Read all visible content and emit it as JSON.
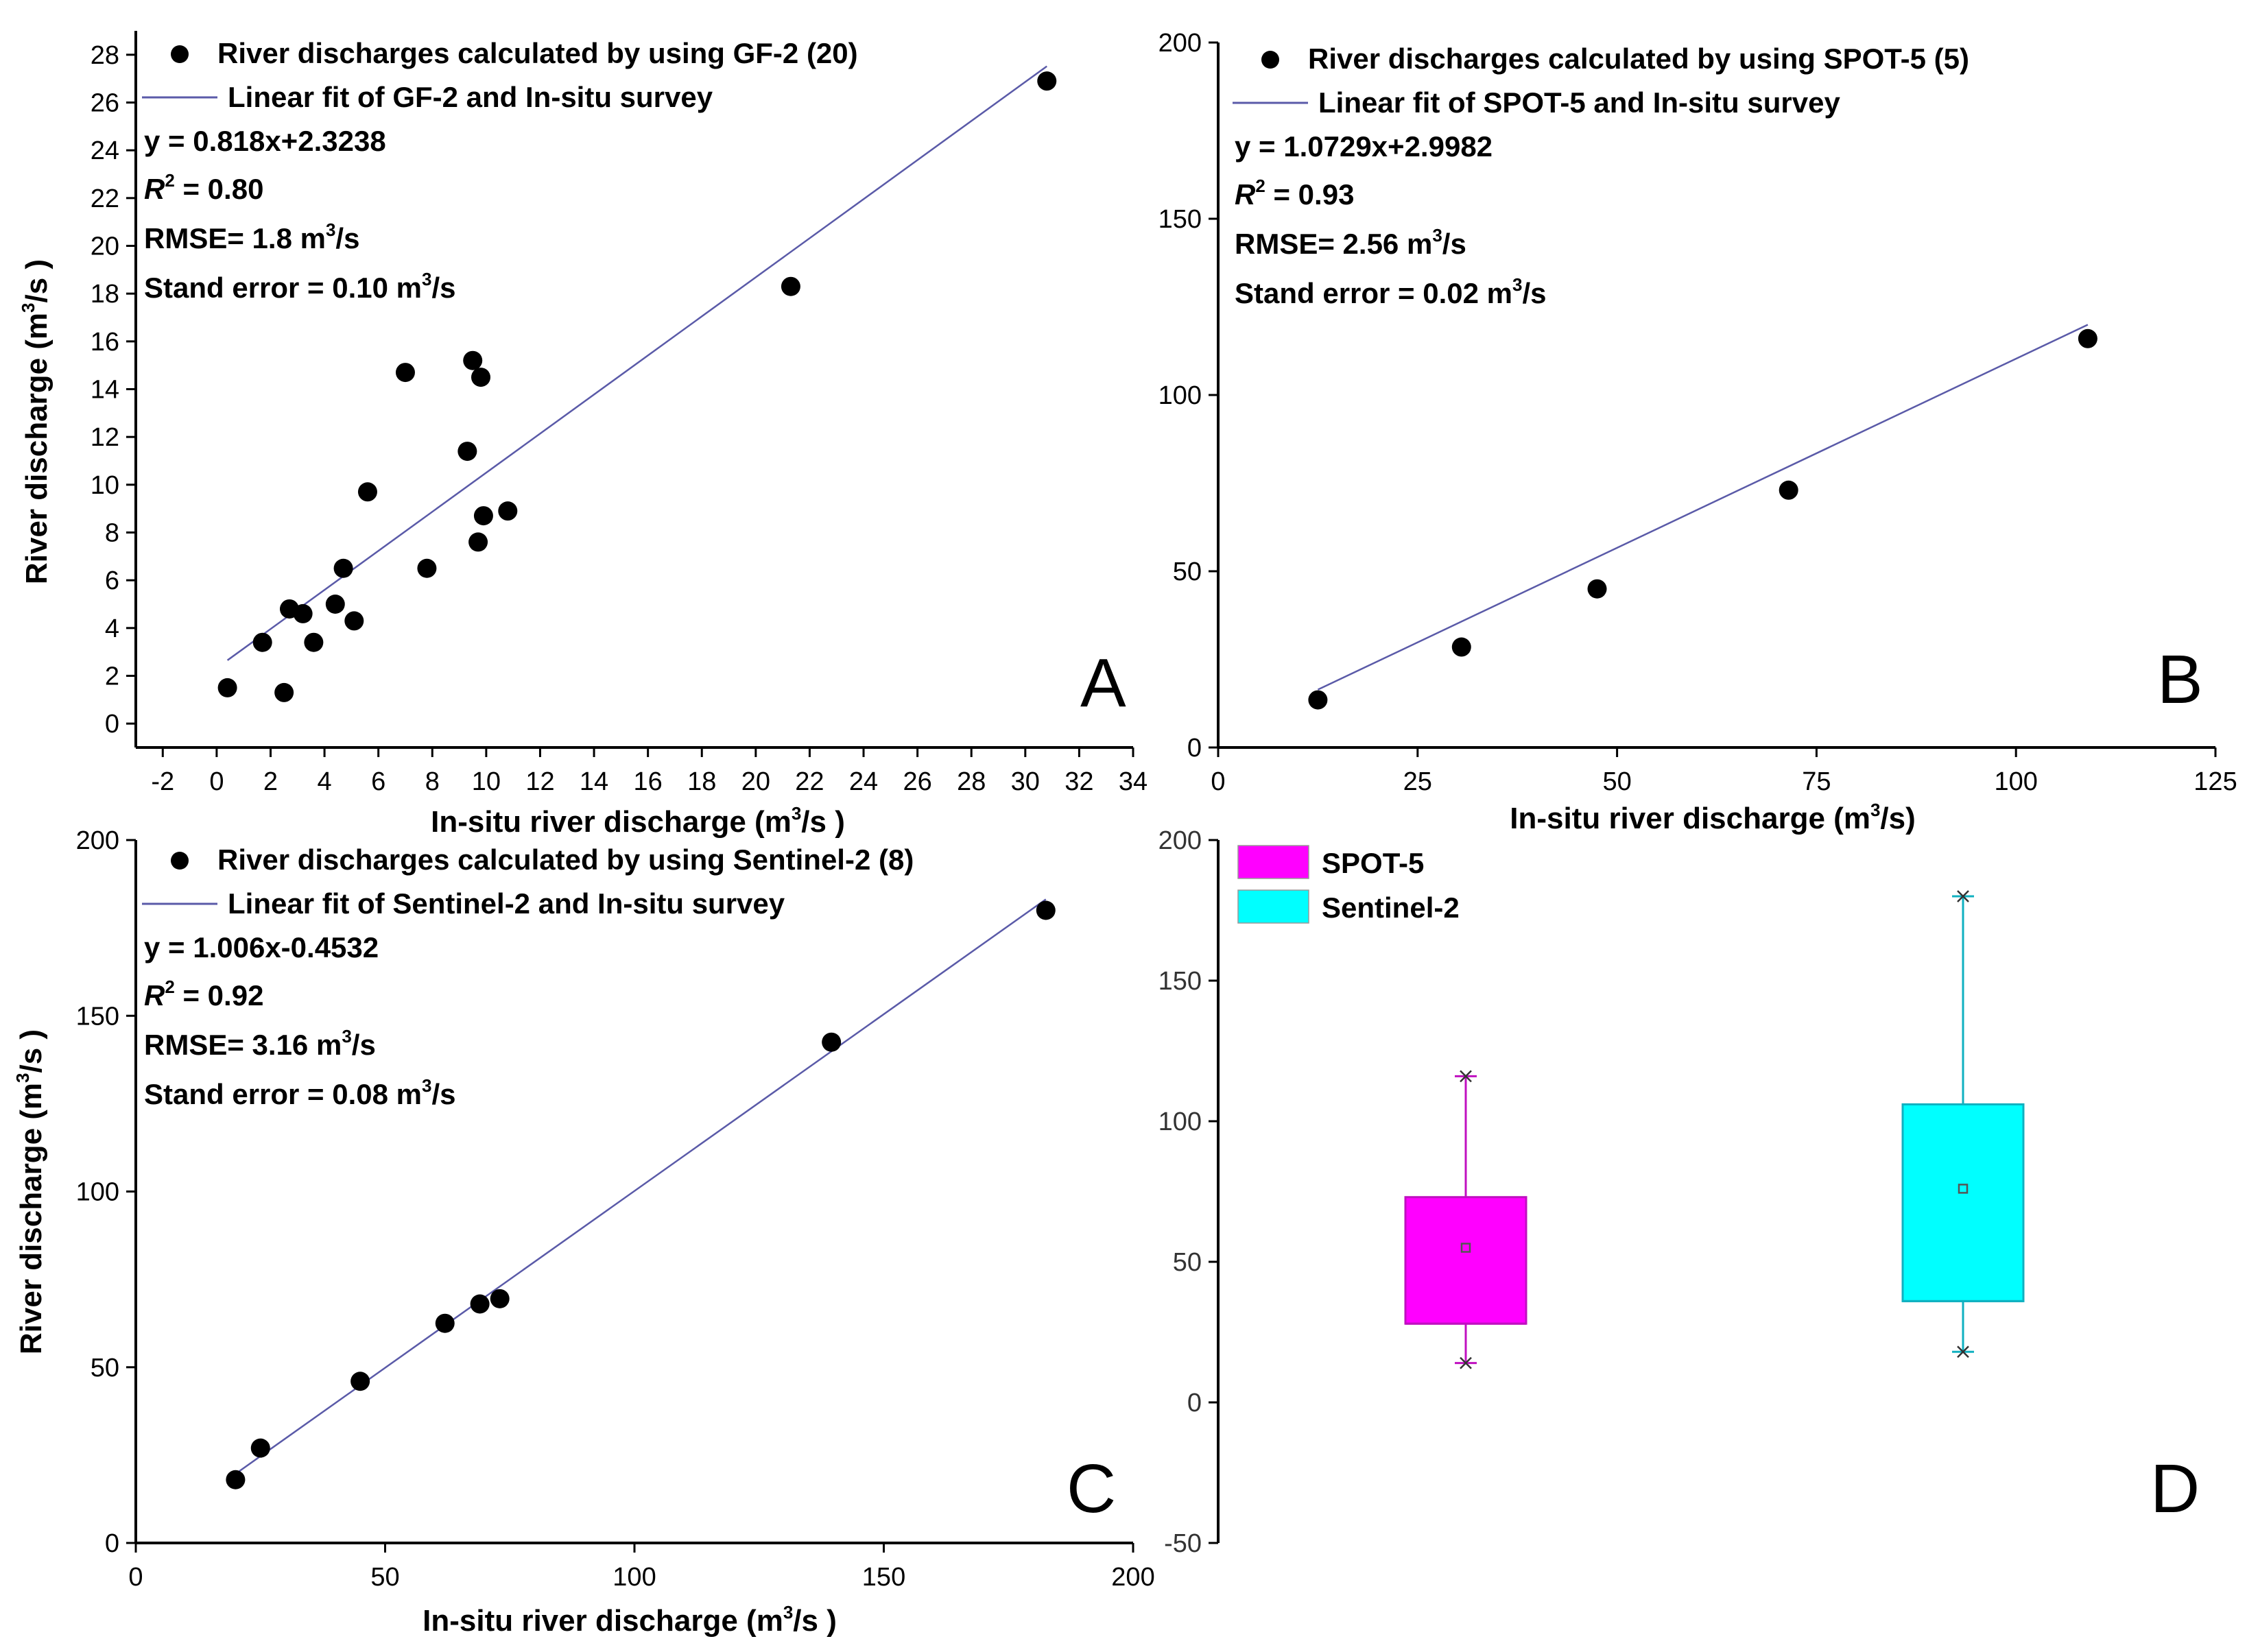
{
  "chart_data": [
    {
      "panel": "A",
      "type": "scatter",
      "xlabel": "In-situ river discharge (m3/s )",
      "ylabel": "River discharge (m3/s )",
      "xlim": [
        -3,
        34
      ],
      "ylim": [
        -1,
        29
      ],
      "xticks": [
        -2,
        0,
        2,
        4,
        6,
        8,
        10,
        12,
        14,
        16,
        18,
        20,
        22,
        24,
        26,
        28,
        30,
        32,
        34
      ],
      "yticks": [
        0,
        2,
        4,
        6,
        8,
        10,
        12,
        14,
        16,
        18,
        20,
        22,
        24,
        26,
        28
      ],
      "series": [
        {
          "name": "River discharges calculated by using GF-2 (20)",
          "points": [
            [
              0.4,
              1.5
            ],
            [
              1.7,
              3.4
            ],
            [
              2.5,
              1.3
            ],
            [
              2.7,
              4.8
            ],
            [
              3.2,
              4.6
            ],
            [
              3.6,
              3.4
            ],
            [
              4.4,
              5.0
            ],
            [
              4.7,
              6.5
            ],
            [
              5.1,
              4.3
            ],
            [
              5.6,
              9.7
            ],
            [
              7.0,
              14.7
            ],
            [
              7.8,
              6.5
            ],
            [
              9.3,
              11.4
            ],
            [
              9.5,
              15.2
            ],
            [
              9.7,
              7.6
            ],
            [
              9.8,
              14.5
            ],
            [
              9.9,
              8.7
            ],
            [
              10.8,
              8.9
            ],
            [
              21.3,
              18.3
            ],
            [
              30.8,
              26.9
            ]
          ]
        }
      ],
      "fit": {
        "name": "Linear fit of GF-2 and In-situ survey",
        "slope": 0.818,
        "intercept": 2.3238,
        "x_range": [
          0.4,
          30.8
        ]
      },
      "stats": {
        "equation": "y = 0.818x+2.3238",
        "r2": "= 0.80",
        "rmse": "RMSE= 1.8 m",
        "stand_error": "Stand error = 0.10 m"
      },
      "panel_label": "A"
    },
    {
      "panel": "B",
      "type": "scatter",
      "xlabel": "In-situ river discharge (m3/s)",
      "ylabel": "",
      "xlim": [
        0,
        125
      ],
      "ylim": [
        0,
        200
      ],
      "xticks": [
        0,
        25,
        50,
        75,
        100,
        125
      ],
      "yticks": [
        0,
        50,
        100,
        150,
        200
      ],
      "series": [
        {
          "name": "River discharges calculated by using SPOT-5 (5)",
          "points": [
            [
              12.5,
              13.5
            ],
            [
              30.5,
              28.5
            ],
            [
              47.5,
              45.0
            ],
            [
              71.5,
              73.0
            ],
            [
              109.0,
              116.0
            ]
          ]
        }
      ],
      "fit": {
        "name": "Linear fit of SPOT-5 and In-situ survey",
        "slope": 1.0729,
        "intercept": 2.9982,
        "x_range": [
          12.5,
          109.0
        ]
      },
      "stats": {
        "equation": "y = 1.0729x+2.9982",
        "r2": "= 0.93",
        "rmse": "RMSE= 2.56 m",
        "stand_error": "Stand error = 0.02 m"
      },
      "panel_label": "B"
    },
    {
      "panel": "C",
      "type": "scatter",
      "xlabel": "In-situ river discharge (m3/s )",
      "ylabel": "River discharge (m3/s )",
      "xlim": [
        0,
        200
      ],
      "ylim": [
        0,
        200
      ],
      "xticks": [
        0,
        50,
        100,
        150,
        200
      ],
      "yticks": [
        0,
        50,
        100,
        150,
        200
      ],
      "series": [
        {
          "name": "River discharges calculated by using Sentinel-2 (8)",
          "points": [
            [
              20.0,
              18.0
            ],
            [
              25.0,
              27.0
            ],
            [
              45.0,
              46.0
            ],
            [
              62.0,
              62.5
            ],
            [
              69.0,
              68.0
            ],
            [
              73.0,
              69.5
            ],
            [
              139.5,
              142.5
            ],
            [
              182.5,
              180.0
            ]
          ]
        }
      ],
      "fit": {
        "name": "Linear fit of Sentinel-2 and In-situ survey",
        "slope": 1.006,
        "intercept": -0.4532,
        "x_range": [
          20.0,
          182.5
        ]
      },
      "stats": {
        "equation": "y = 1.006x-0.4532",
        "r2": "= 0.92",
        "rmse": "RMSE= 3.16 m",
        "stand_error": "Stand error = 0.08 m"
      },
      "panel_label": "C"
    },
    {
      "panel": "D",
      "type": "box",
      "ylim": [
        -50,
        200
      ],
      "yticks": [
        -50,
        0,
        50,
        100,
        150,
        200
      ],
      "series": [
        {
          "name": "SPOT-5",
          "color": "#ff00ff",
          "min": 14,
          "q1": 28,
          "median": 28,
          "mean": 55,
          "q3": 73,
          "max": 116
        },
        {
          "name": "Sentinel-2",
          "color": "#00ffff",
          "min": 18,
          "q1": 36,
          "median": 36,
          "mean": 76,
          "q3": 106,
          "max": 180
        }
      ],
      "panel_label": "D"
    }
  ],
  "units": {
    "sup3": "3",
    "per_s": "/s",
    "r": "R",
    "sup2": "2"
  }
}
